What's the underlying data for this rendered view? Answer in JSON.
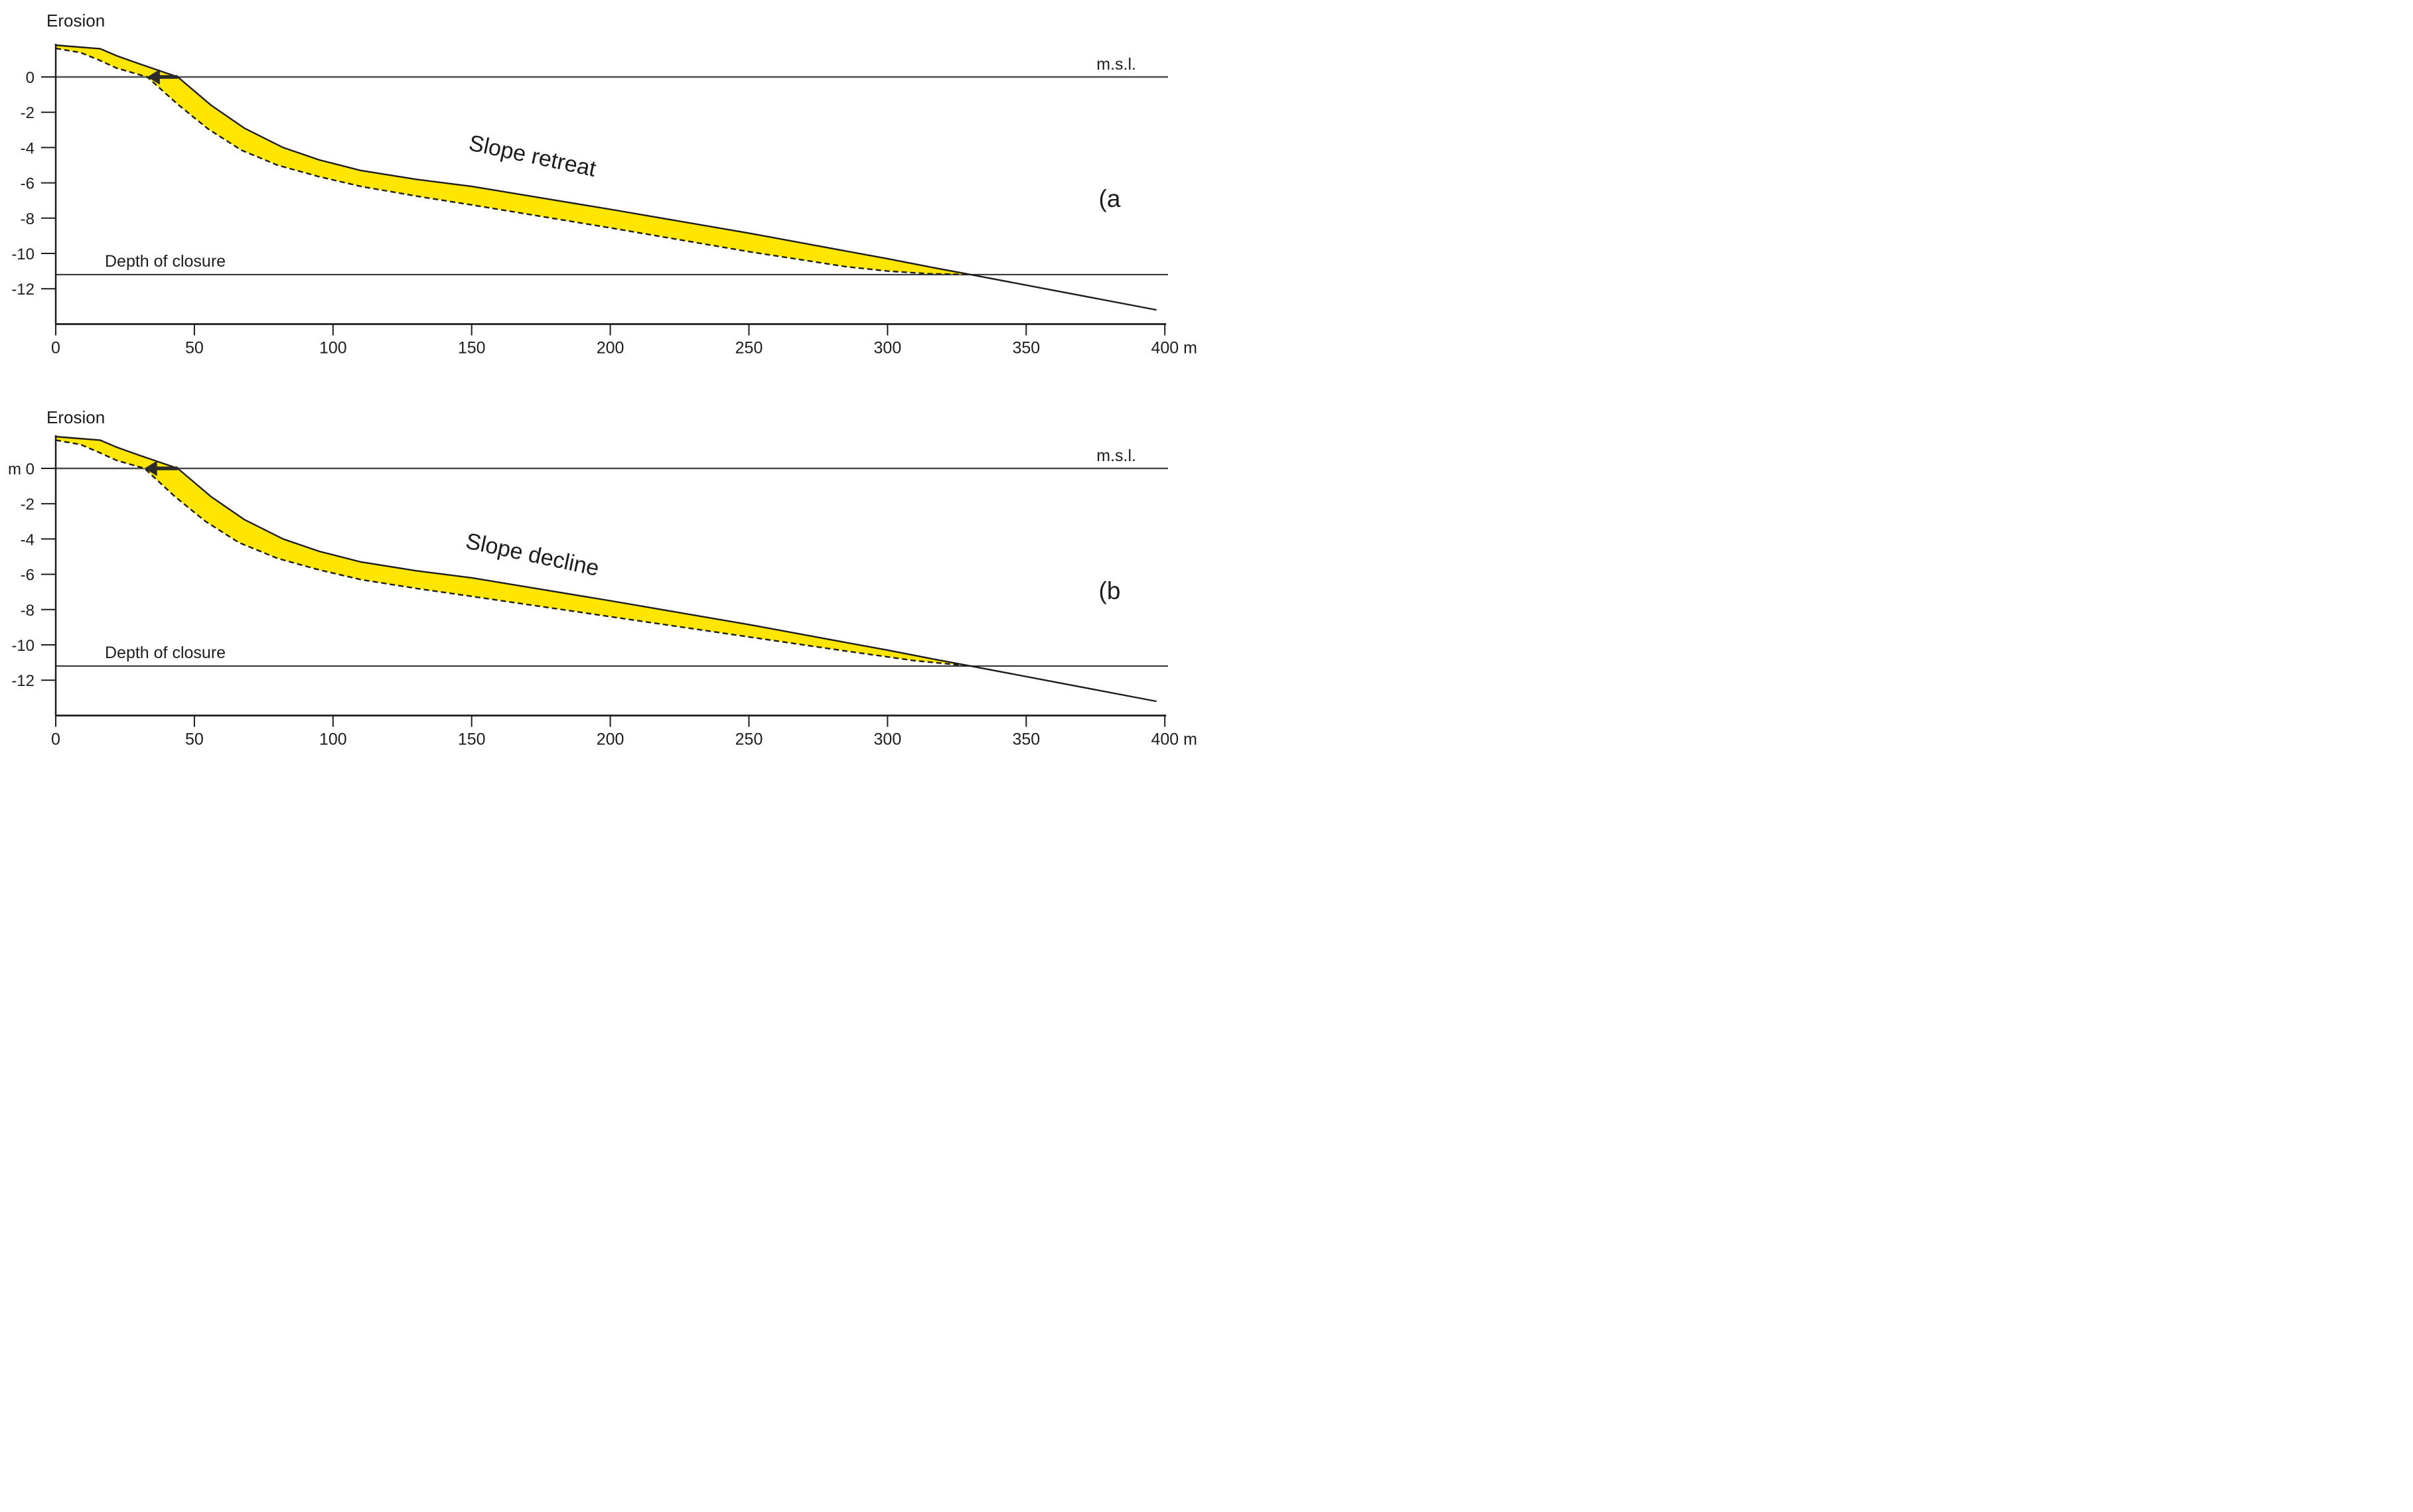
{
  "figure_background": "#ffffff",
  "colors": {
    "band": "#ffe600",
    "line": "#1d1d1b",
    "sea_level_line": "#4d4d4d",
    "depth_line": "#2b2b2b",
    "axis": "#1d1d1b",
    "text": "#1d1d1b",
    "arrow": "#2b2b2b"
  },
  "chart_data": [
    {
      "type": "area",
      "panel_label": "(a",
      "process_label": "Slope retreat",
      "erosion_label": "Erosion",
      "sea_level_label": "m.s.l.",
      "depth_of_closure_label": "Depth of closure",
      "x_unit": "m",
      "y_unit": "m",
      "xlim": [
        0,
        400
      ],
      "ylim": [
        -14,
        2
      ],
      "grid": false,
      "x_ticks": [
        0,
        50,
        100,
        150,
        200,
        250,
        300,
        350,
        400
      ],
      "x_tick_labels": [
        "0",
        "50",
        "100",
        "150",
        "200",
        "250",
        "300",
        "350",
        "400 m"
      ],
      "y_ticks": [
        0,
        -2,
        -4,
        -6,
        -8,
        -10,
        -12
      ],
      "y_tick_labels": [
        "0",
        "-2",
        "-4",
        "-6",
        "-8",
        "-10",
        "-12"
      ],
      "sea_level": 0,
      "depth_of_closure": -11.2,
      "series": [
        {
          "name": "original_profile",
          "style": "solid",
          "points": [
            [
              0,
              1.8
            ],
            [
              16,
              1.6
            ],
            [
              22,
              1.2
            ],
            [
              30,
              0.75
            ],
            [
              44,
              0
            ],
            [
              56,
              -1.6
            ],
            [
              68,
              -2.9
            ],
            [
              82,
              -4.0
            ],
            [
              95,
              -4.7
            ],
            [
              110,
              -5.3
            ],
            [
              130,
              -5.8
            ],
            [
              150,
              -6.2
            ],
            [
              200,
              -7.5
            ],
            [
              250,
              -8.85
            ],
            [
              300,
              -10.3
            ],
            [
              318,
              -10.85
            ],
            [
              330,
              -11.2
            ],
            [
              397,
              -13.2
            ]
          ]
        },
        {
          "name": "eroded_profile",
          "style": "dashed",
          "points": [
            [
              0,
              1.62
            ],
            [
              9,
              1.38
            ],
            [
              15,
              1.0
            ],
            [
              22,
              0.5
            ],
            [
              33,
              0
            ],
            [
              44,
              -1.55
            ],
            [
              55,
              -2.95
            ],
            [
              67,
              -4.15
            ],
            [
              80,
              -5.0
            ],
            [
              95,
              -5.65
            ],
            [
              110,
              -6.2
            ],
            [
              130,
              -6.75
            ],
            [
              150,
              -7.25
            ],
            [
              200,
              -8.55
            ],
            [
              250,
              -9.9
            ],
            [
              285,
              -10.75
            ],
            [
              300,
              -11.0
            ],
            [
              315,
              -11.15
            ],
            [
              330,
              -11.2
            ]
          ]
        }
      ],
      "shoreline_arrow": {
        "y": 0,
        "from_x": 44,
        "to_x": 33
      }
    },
    {
      "type": "area",
      "panel_label": "(b",
      "process_label": "Slope decline",
      "erosion_label": "Erosion",
      "sea_level_label": "m.s.l.",
      "depth_of_closure_label": "Depth of closure",
      "x_unit": "m",
      "y_unit": "m",
      "xlim": [
        0,
        400
      ],
      "ylim": [
        -14,
        2
      ],
      "grid": false,
      "x_ticks": [
        0,
        50,
        100,
        150,
        200,
        250,
        300,
        350,
        400
      ],
      "x_tick_labels": [
        "0",
        "50",
        "100",
        "150",
        "200",
        "250",
        "300",
        "350",
        "400 m"
      ],
      "y_ticks": [
        0,
        -2,
        -4,
        -6,
        -8,
        -10,
        -12
      ],
      "y_tick_labels": [
        "m 0",
        "-2",
        "-4",
        "-6",
        "-8",
        "-10",
        "-12"
      ],
      "sea_level": 0,
      "depth_of_closure": -11.2,
      "series": [
        {
          "name": "original_profile",
          "style": "solid",
          "points": [
            [
              0,
              1.8
            ],
            [
              16,
              1.6
            ],
            [
              22,
              1.2
            ],
            [
              30,
              0.75
            ],
            [
              44,
              0
            ],
            [
              56,
              -1.6
            ],
            [
              68,
              -2.9
            ],
            [
              82,
              -4.0
            ],
            [
              95,
              -4.7
            ],
            [
              110,
              -5.3
            ],
            [
              130,
              -5.8
            ],
            [
              150,
              -6.2
            ],
            [
              200,
              -7.5
            ],
            [
              250,
              -8.85
            ],
            [
              300,
              -10.3
            ],
            [
              318,
              -10.85
            ],
            [
              330,
              -11.2
            ],
            [
              397,
              -13.2
            ]
          ]
        },
        {
          "name": "eroded_profile",
          "style": "dashed",
          "points": [
            [
              0,
              1.6
            ],
            [
              9,
              1.35
            ],
            [
              15,
              0.95
            ],
            [
              22,
              0.45
            ],
            [
              32,
              0
            ],
            [
              43,
              -1.6
            ],
            [
              54,
              -3.0
            ],
            [
              66,
              -4.2
            ],
            [
              80,
              -5.1
            ],
            [
              95,
              -5.75
            ],
            [
              110,
              -6.3
            ],
            [
              130,
              -6.8
            ],
            [
              150,
              -7.25
            ],
            [
              200,
              -8.4
            ],
            [
              250,
              -9.55
            ],
            [
              285,
              -10.35
            ],
            [
              310,
              -10.9
            ],
            [
              330,
              -11.2
            ]
          ]
        }
      ],
      "shoreline_arrow": {
        "y": 0,
        "from_x": 44,
        "to_x": 32
      }
    }
  ]
}
